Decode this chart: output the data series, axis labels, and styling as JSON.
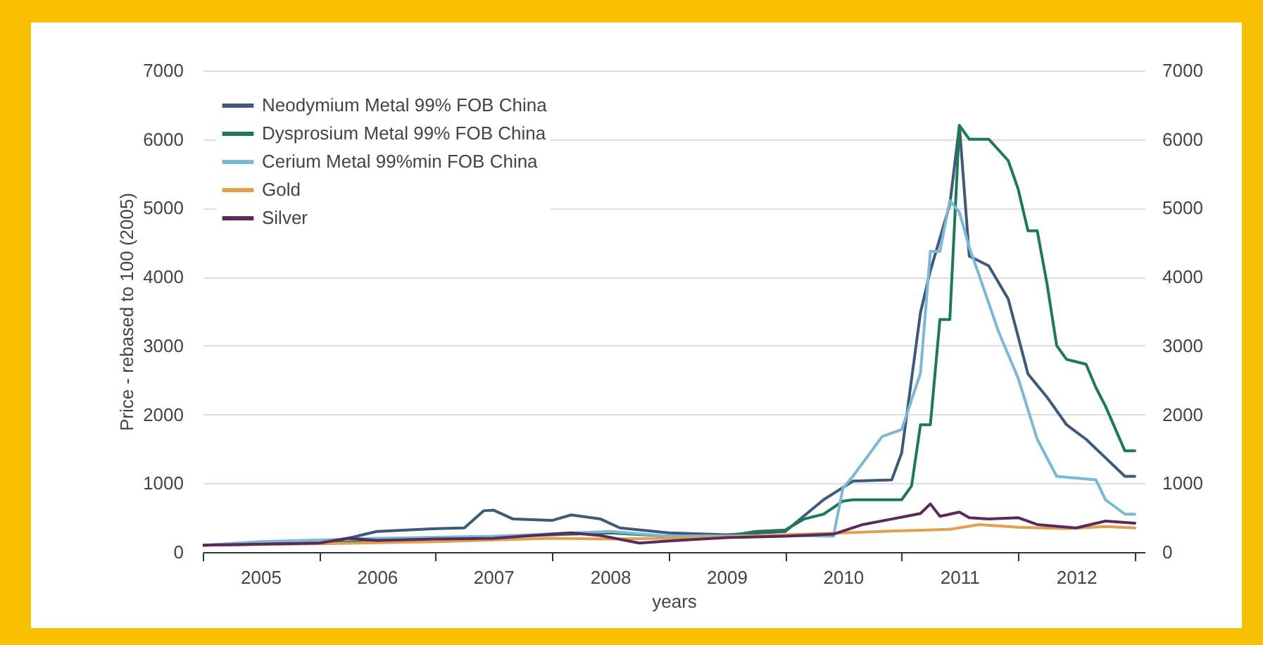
{
  "chart_data": {
    "type": "line",
    "xlabel": "years",
    "ylabel": "Price - rebased to 100 (2005)",
    "xlim": [
      "2005-01",
      "2013-02"
    ],
    "xticks": [
      {
        "value": "2005-01",
        "label": null
      },
      {
        "value": "2005-07",
        "label": "2005"
      },
      {
        "value": "2006-01",
        "label": null
      },
      {
        "value": "2006-07",
        "label": "2006"
      },
      {
        "value": "2007-01",
        "label": null
      },
      {
        "value": "2007-07",
        "label": "2007"
      },
      {
        "value": "2008-01",
        "label": null
      },
      {
        "value": "2008-07",
        "label": "2008"
      },
      {
        "value": "2009-01",
        "label": null
      },
      {
        "value": "2009-07",
        "label": "2009"
      },
      {
        "value": "2010-01",
        "label": null
      },
      {
        "value": "2010-07",
        "label": "2010"
      },
      {
        "value": "2011-01",
        "label": null
      },
      {
        "value": "2011-07",
        "label": "2011"
      },
      {
        "value": "2012-01",
        "label": null
      },
      {
        "value": "2012-07",
        "label": "2012"
      },
      {
        "value": "2013-01",
        "label": null
      }
    ],
    "ylim": [
      0,
      7000
    ],
    "yticks": [
      0,
      1000,
      2000,
      3000,
      4000,
      5000,
      6000,
      7000
    ],
    "y2lim": [
      0,
      7000
    ],
    "y2ticks": [
      0,
      1000,
      2000,
      3000,
      4000,
      5000,
      6000,
      7000
    ],
    "grid": "y",
    "legend": "top left",
    "series": [
      {
        "name": "Neodymium Metal 99% FOB China",
        "color": "#3d5a7a",
        "x": [
          "2005-01",
          "2006-01",
          "2006-04",
          "2006-07",
          "2007-01",
          "2007-04",
          "2007-06",
          "2007-07",
          "2007-09",
          "2008-01",
          "2008-03",
          "2008-06",
          "2008-08",
          "2009-01",
          "2009-07",
          "2010-01",
          "2010-05",
          "2010-08",
          "2010-12",
          "2011-01",
          "2011-03",
          "2011-04",
          "2011-06",
          "2011-07",
          "2011-08",
          "2011-10",
          "2011-12",
          "2012-02",
          "2012-04",
          "2012-06",
          "2012-08",
          "2012-10",
          "2012-12",
          "2013-01"
        ],
        "values": [
          100,
          130,
          200,
          300,
          340,
          350,
          600,
          610,
          480,
          460,
          540,
          480,
          350,
          280,
          250,
          300,
          760,
          1030,
          1050,
          1440,
          3480,
          4090,
          5050,
          6200,
          4300,
          4160,
          3680,
          2590,
          2250,
          1850,
          1640,
          1370,
          1100,
          1100
        ]
      },
      {
        "name": "Dysprosium Metal 99% FOB China",
        "color": "#1e7a55",
        "x": [
          "2005-01",
          "2006-01",
          "2007-01",
          "2008-01",
          "2008-07",
          "2009-01",
          "2009-07",
          "2009-10",
          "2010-01",
          "2010-03",
          "2010-05",
          "2010-07",
          "2010-08",
          "2011-01",
          "2011-02",
          "2011-03",
          "2011-04",
          "2011-05",
          "2011-06",
          "2011-07",
          "2011-08",
          "2011-10",
          "2011-12",
          "2012-01",
          "2012-02",
          "2012-03",
          "2012-04",
          "2012-05",
          "2012-06",
          "2012-08",
          "2012-09",
          "2012-10",
          "2012-12",
          "2013-01"
        ],
        "values": [
          100,
          130,
          200,
          250,
          280,
          230,
          230,
          300,
          320,
          480,
          550,
          740,
          760,
          760,
          960,
          1850,
          1850,
          3380,
          3380,
          6200,
          6000,
          6000,
          5690,
          5280,
          4670,
          4670,
          3890,
          3000,
          2800,
          2730,
          2390,
          2120,
          1470,
          1470
        ]
      },
      {
        "name": "Cerium Metal 99%min FOB China",
        "color": "#7ab8d6",
        "x": [
          "2005-01",
          "2005-07",
          "2006-07",
          "2007-07",
          "2008-07",
          "2009-01",
          "2010-01",
          "2010-06",
          "2010-07",
          "2010-08",
          "2010-11",
          "2011-01",
          "2011-03",
          "2011-04",
          "2011-05",
          "2011-06",
          "2011-07",
          "2011-08",
          "2011-09",
          "2011-11",
          "2012-01",
          "2012-03",
          "2012-05",
          "2012-09",
          "2012-10",
          "2012-12",
          "2013-01"
        ],
        "values": [
          100,
          150,
          200,
          230,
          300,
          230,
          240,
          230,
          930,
          1100,
          1680,
          1780,
          2600,
          4370,
          4370,
          5110,
          4940,
          4430,
          4020,
          3200,
          2530,
          1640,
          1100,
          1050,
          760,
          550,
          550
        ]
      },
      {
        "name": "Gold",
        "color": "#e0a050",
        "x": [
          "2005-01",
          "2006-01",
          "2007-01",
          "2008-01",
          "2008-07",
          "2009-01",
          "2009-07",
          "2010-01",
          "2010-07",
          "2011-01",
          "2011-06",
          "2011-09",
          "2012-01",
          "2012-06",
          "2012-10",
          "2013-01"
        ],
        "values": [
          100,
          120,
          150,
          200,
          190,
          200,
          220,
          250,
          280,
          310,
          330,
          400,
          360,
          340,
          370,
          350
        ]
      },
      {
        "name": "Silver",
        "color": "#5a2a5a",
        "x": [
          "2005-01",
          "2006-01",
          "2006-04",
          "2006-07",
          "2007-01",
          "2007-07",
          "2008-01",
          "2008-03",
          "2008-06",
          "2008-10",
          "2009-01",
          "2009-07",
          "2010-01",
          "2010-06",
          "2010-09",
          "2010-12",
          "2011-03",
          "2011-04",
          "2011-05",
          "2011-07",
          "2011-08",
          "2011-10",
          "2012-01",
          "2012-03",
          "2012-07",
          "2012-10",
          "2013-01"
        ],
        "values": [
          100,
          130,
          200,
          170,
          190,
          200,
          260,
          280,
          240,
          130,
          160,
          210,
          230,
          260,
          400,
          480,
          560,
          700,
          520,
          580,
          500,
          480,
          500,
          400,
          350,
          450,
          420
        ]
      }
    ]
  }
}
